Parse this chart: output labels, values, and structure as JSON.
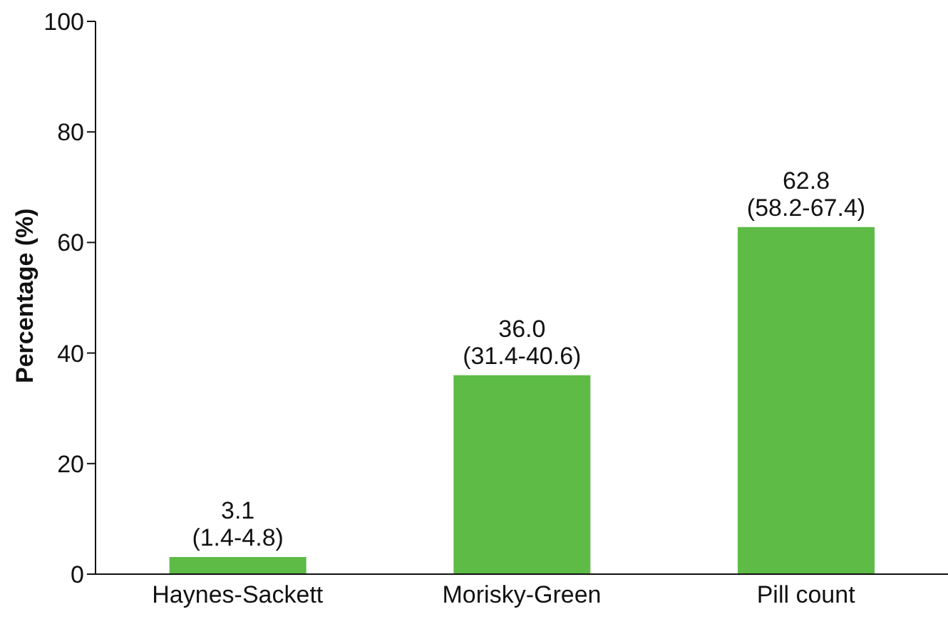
{
  "chart_data": {
    "type": "bar",
    "ylabel": "Percentage (%)",
    "categories": [
      "Haynes-Sackett",
      "Morisky-Green",
      "Pill count"
    ],
    "values": [
      3.1,
      36.0,
      62.8
    ],
    "color": "#5dbb46",
    "value_labels": [
      "3.1\n(1.4-4.8)",
      "36.0\n(31.4-40.6)",
      "62.8\n(58.2-67.4)"
    ],
    "ylim": [
      0,
      100
    ],
    "yticks": [
      0,
      20,
      40,
      60,
      80,
      100
    ]
  }
}
